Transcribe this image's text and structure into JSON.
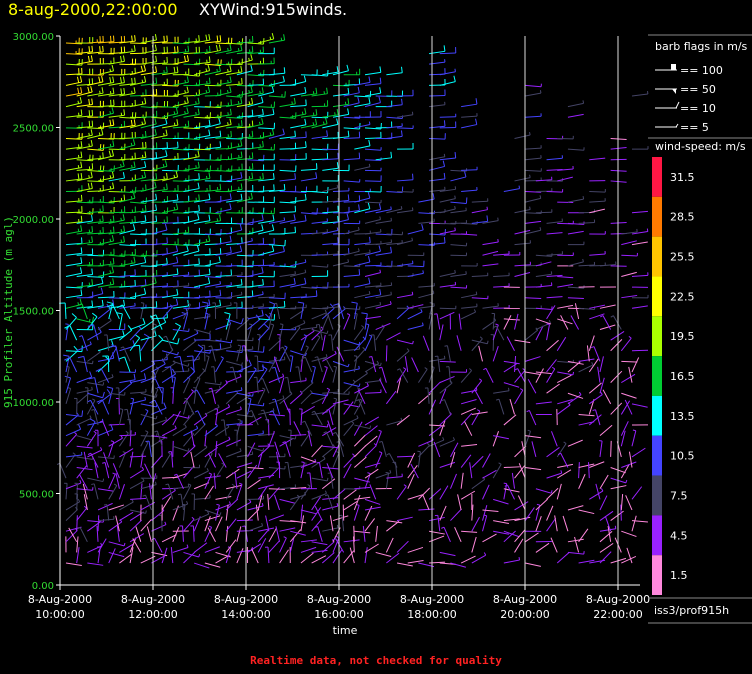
{
  "header": {
    "date_title": "8-aug-2000,22:00:00",
    "product_title": "XYWind:915winds."
  },
  "footer": {
    "note": "Realtime data, not checked for quality"
  },
  "station_label": "iss3/prof915h",
  "chart_data": {
    "type": "wind-barb",
    "ylabel": "915 Profiler Altitude (m agl)",
    "xlabel": "time",
    "ylim": [
      0,
      3000
    ],
    "y_ticks": [
      "0.00",
      "500.00",
      "1000.00",
      "1500.00",
      "2000.00",
      "2500.00",
      "3000.00"
    ],
    "x_ticks": [
      {
        "date": "8-Aug-2000",
        "time": "10:00:00"
      },
      {
        "date": "8-Aug-2000",
        "time": "12:00:00"
      },
      {
        "date": "8-Aug-2000",
        "time": "14:00:00"
      },
      {
        "date": "8-Aug-2000",
        "time": "16:00:00"
      },
      {
        "date": "8-Aug-2000",
        "time": "18:00:00"
      },
      {
        "date": "8-Aug-2000",
        "time": "20:00:00"
      },
      {
        "date": "8-Aug-2000",
        "time": "22:00:00"
      }
    ],
    "barb_legend": {
      "title": "barb flags in m/s",
      "entries": [
        "== 100",
        "== 50",
        "== 10",
        "== 5"
      ]
    },
    "speed_legend": {
      "title": "wind-speed: m/s",
      "bins": [
        {
          "label": "31.5",
          "color": "#ff1744"
        },
        {
          "label": "28.5",
          "color": "#ff7a00"
        },
        {
          "label": "25.5",
          "color": "#ffc400"
        },
        {
          "label": "22.5",
          "color": "#ffff00"
        },
        {
          "label": "19.5",
          "color": "#aaff00"
        },
        {
          "label": "16.5",
          "color": "#00cc33"
        },
        {
          "label": "13.5",
          "color": "#00ffff"
        },
        {
          "label": "10.5",
          "color": "#4444ff"
        },
        {
          "label": "7.5",
          "color": "#444466"
        },
        {
          "label": "4.5",
          "color": "#9922ff"
        },
        {
          "label": "1.5",
          "color": "#ff88dd"
        }
      ]
    },
    "grid": true
  }
}
